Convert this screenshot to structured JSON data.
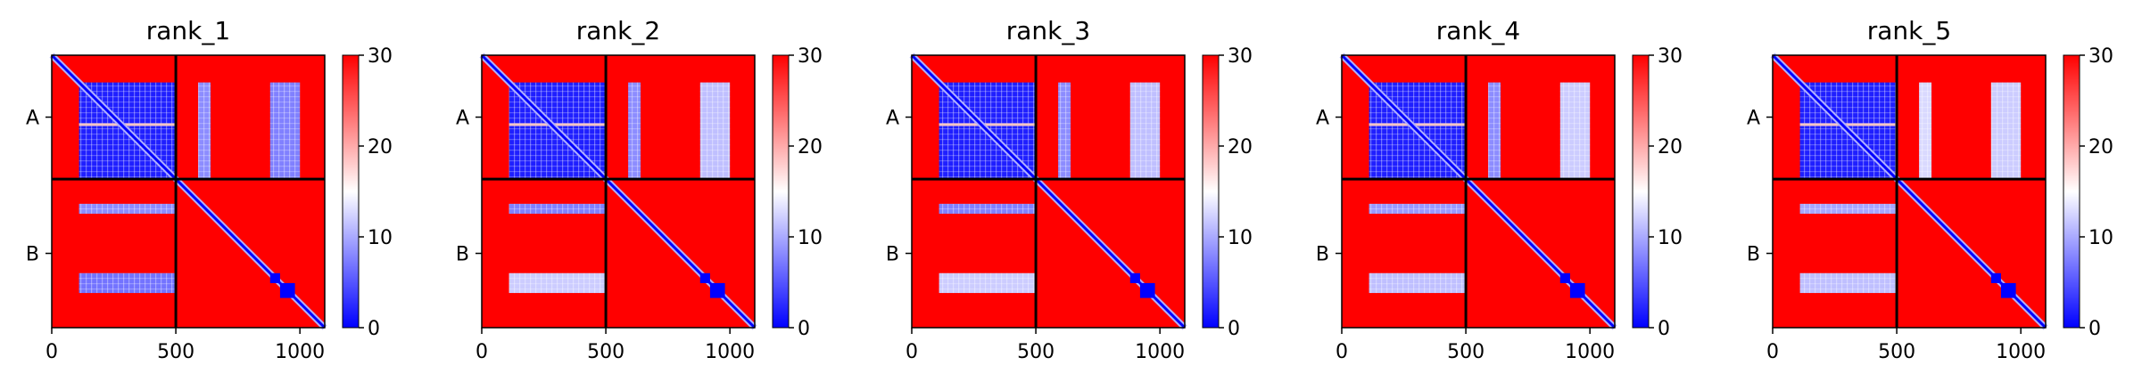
{
  "figure": {
    "background": "#ffffff"
  },
  "colormap": {
    "name": "bwr",
    "low": "#0000ff",
    "mid": "#ffffff",
    "high": "#ff0000"
  },
  "chart_data": [
    {
      "type": "heatmap",
      "title": "rank_1",
      "chains": [
        "A",
        "B"
      ],
      "chain_boundary": 500,
      "total_length": 1100,
      "x_ticks": [
        0,
        500,
        1000
      ],
      "x_tick_labels": [
        "0",
        "500",
        "1000"
      ],
      "colorbar": {
        "min": 0,
        "max": 30,
        "ticks": [
          0,
          10,
          20,
          30
        ],
        "tick_labels": [
          "0",
          "10",
          "20",
          "30"
        ]
      },
      "blue_blocks": [
        {
          "x": [
            110,
            500
          ],
          "y": [
            110,
            500
          ],
          "level": 0.12
        },
        {
          "x": [
            590,
            640
          ],
          "y": [
            110,
            500
          ],
          "level": 0.55
        },
        {
          "x": [
            880,
            1000
          ],
          "y": [
            110,
            500
          ],
          "level": 0.5
        },
        {
          "x": [
            110,
            500
          ],
          "y": [
            600,
            640
          ],
          "level": 0.55
        },
        {
          "x": [
            110,
            500
          ],
          "y": [
            880,
            960
          ],
          "level": 0.45
        }
      ],
      "diagonal_blocks": [
        [
          880,
          920
        ],
        [
          920,
          980
        ]
      ]
    },
    {
      "type": "heatmap",
      "title": "rank_2",
      "chains": [
        "A",
        "B"
      ],
      "chain_boundary": 500,
      "total_length": 1100,
      "x_ticks": [
        0,
        500,
        1000
      ],
      "x_tick_labels": [
        "0",
        "500",
        "1000"
      ],
      "colorbar": {
        "min": 0,
        "max": 30,
        "ticks": [
          0,
          10,
          20,
          30
        ],
        "tick_labels": [
          "0",
          "10",
          "20",
          "30"
        ]
      },
      "blue_blocks": [
        {
          "x": [
            110,
            500
          ],
          "y": [
            110,
            500
          ],
          "level": 0.12
        },
        {
          "x": [
            590,
            640
          ],
          "y": [
            110,
            500
          ],
          "level": 0.55
        },
        {
          "x": [
            880,
            1000
          ],
          "y": [
            110,
            500
          ],
          "level": 0.75
        },
        {
          "x": [
            110,
            500
          ],
          "y": [
            600,
            640
          ],
          "level": 0.5
        },
        {
          "x": [
            110,
            500
          ],
          "y": [
            880,
            960
          ],
          "level": 0.8
        }
      ],
      "diagonal_blocks": [
        [
          880,
          920
        ],
        [
          920,
          980
        ]
      ]
    },
    {
      "type": "heatmap",
      "title": "rank_3",
      "chains": [
        "A",
        "B"
      ],
      "chain_boundary": 500,
      "total_length": 1100,
      "x_ticks": [
        0,
        500,
        1000
      ],
      "x_tick_labels": [
        "0",
        "500",
        "1000"
      ],
      "colorbar": {
        "min": 0,
        "max": 30,
        "ticks": [
          0,
          10,
          20,
          30
        ],
        "tick_labels": [
          "0",
          "10",
          "20",
          "30"
        ]
      },
      "blue_blocks": [
        {
          "x": [
            110,
            500
          ],
          "y": [
            110,
            500
          ],
          "level": 0.12
        },
        {
          "x": [
            590,
            640
          ],
          "y": [
            110,
            500
          ],
          "level": 0.55
        },
        {
          "x": [
            880,
            1000
          ],
          "y": [
            110,
            500
          ],
          "level": 0.75
        },
        {
          "x": [
            110,
            500
          ],
          "y": [
            600,
            640
          ],
          "level": 0.5
        },
        {
          "x": [
            110,
            500
          ],
          "y": [
            880,
            960
          ],
          "level": 0.8
        }
      ],
      "diagonal_blocks": [
        [
          880,
          920
        ],
        [
          920,
          980
        ]
      ]
    },
    {
      "type": "heatmap",
      "title": "rank_4",
      "chains": [
        "A",
        "B"
      ],
      "chain_boundary": 500,
      "total_length": 1100,
      "x_ticks": [
        0,
        500,
        1000
      ],
      "x_tick_labels": [
        "0",
        "500",
        "1000"
      ],
      "colorbar": {
        "min": 0,
        "max": 30,
        "ticks": [
          0,
          10,
          20,
          30
        ],
        "tick_labels": [
          "0",
          "10",
          "20",
          "30"
        ]
      },
      "blue_blocks": [
        {
          "x": [
            110,
            500
          ],
          "y": [
            110,
            500
          ],
          "level": 0.12
        },
        {
          "x": [
            590,
            640
          ],
          "y": [
            110,
            500
          ],
          "level": 0.55
        },
        {
          "x": [
            880,
            1000
          ],
          "y": [
            110,
            500
          ],
          "level": 0.8
        },
        {
          "x": [
            110,
            500
          ],
          "y": [
            600,
            640
          ],
          "level": 0.6
        },
        {
          "x": [
            110,
            500
          ],
          "y": [
            880,
            960
          ],
          "level": 0.75
        }
      ],
      "diagonal_blocks": [
        [
          880,
          920
        ],
        [
          920,
          980
        ]
      ]
    },
    {
      "type": "heatmap",
      "title": "rank_5",
      "chains": [
        "A",
        "B"
      ],
      "chain_boundary": 500,
      "total_length": 1100,
      "x_ticks": [
        0,
        500,
        1000
      ],
      "x_tick_labels": [
        "0",
        "500",
        "1000"
      ],
      "colorbar": {
        "min": 0,
        "max": 30,
        "ticks": [
          0,
          10,
          20,
          30
        ],
        "tick_labels": [
          "0",
          "10",
          "20",
          "30"
        ]
      },
      "blue_blocks": [
        {
          "x": [
            110,
            500
          ],
          "y": [
            110,
            500
          ],
          "level": 0.12
        },
        {
          "x": [
            590,
            640
          ],
          "y": [
            110,
            500
          ],
          "level": 0.85
        },
        {
          "x": [
            880,
            1000
          ],
          "y": [
            110,
            500
          ],
          "level": 0.8
        },
        {
          "x": [
            110,
            500
          ],
          "y": [
            600,
            640
          ],
          "level": 0.65
        },
        {
          "x": [
            110,
            500
          ],
          "y": [
            880,
            960
          ],
          "level": 0.75
        }
      ],
      "diagonal_blocks": [
        [
          880,
          920
        ],
        [
          920,
          980
        ]
      ]
    }
  ]
}
